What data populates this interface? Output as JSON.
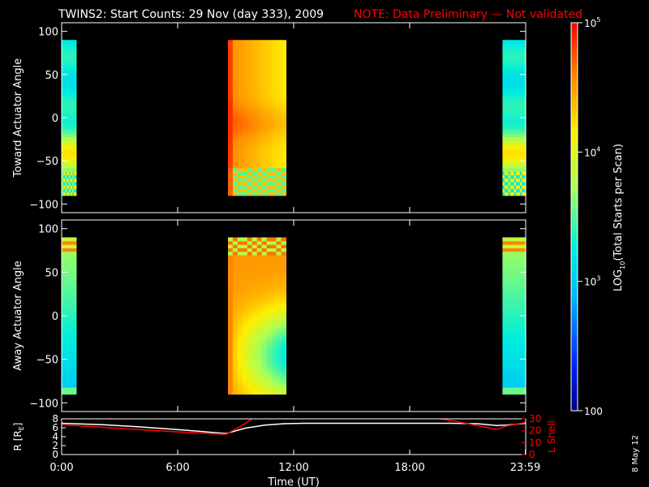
{
  "title": {
    "main": "TWINS2: Start Counts: 29 Nov (day 333), 2009",
    "note": "NOTE: Data Preliminary — Not validated",
    "note_color": "#ff0000"
  },
  "side_date": "8 May 12",
  "chart_data": [
    {
      "type": "heatmap",
      "name": "toward",
      "ylabel": "Toward Actuator Angle",
      "xlim": [
        0,
        24
      ],
      "ylim": [
        -110,
        110
      ],
      "yticks": [
        "100",
        "50",
        "0",
        "−50",
        "−100"
      ],
      "ytick_values": [
        100,
        50,
        0,
        -50,
        -100
      ],
      "blocks": [
        {
          "x0": 0.0,
          "x1": 0.75,
          "y0": -90,
          "y1": 90,
          "profile": "toward-edge"
        },
        {
          "x0": 8.6,
          "x1": 11.6,
          "y0": -90,
          "y1": 90,
          "profile": "toward-mid"
        },
        {
          "x0": 22.8,
          "x1": 24.0,
          "y0": -90,
          "y1": 90,
          "profile": "toward-edge"
        }
      ]
    },
    {
      "type": "heatmap",
      "name": "away",
      "ylabel": "Away Actuator Angle",
      "xlim": [
        0,
        24
      ],
      "ylim": [
        -110,
        110
      ],
      "yticks": [
        "100",
        "50",
        "0",
        "−50",
        "−100"
      ],
      "ytick_values": [
        100,
        50,
        0,
        -50,
        -100
      ],
      "blocks": [
        {
          "x0": 0.0,
          "x1": 0.75,
          "y0": -90,
          "y1": 90,
          "profile": "away-edge"
        },
        {
          "x0": 8.6,
          "x1": 11.6,
          "y0": -90,
          "y1": 90,
          "profile": "away-mid"
        },
        {
          "x0": 22.8,
          "x1": 24.0,
          "y0": -90,
          "y1": 90,
          "profile": "away-edge"
        }
      ]
    },
    {
      "type": "line",
      "name": "orbit",
      "ylabel_left": "R [R",
      "ylabel_left_sub": "E",
      "ylabel_left_end": "]",
      "ylabel_right": "L Shell",
      "ylim_left": [
        0,
        8
      ],
      "ylim_right": [
        0,
        30
      ],
      "yticks_left": [
        "8",
        "6",
        "4",
        "2",
        "0"
      ],
      "ytick_values_left": [
        8,
        6,
        4,
        2,
        0
      ],
      "yticks_right": [
        "30",
        "20",
        "10",
        "0"
      ],
      "ytick_values_right": [
        30,
        20,
        10,
        0
      ],
      "xticks": [
        "0:00",
        "6:00",
        "12:00",
        "18:00",
        "23:59"
      ],
      "xtick_values": [
        0,
        6,
        12,
        18,
        23.98
      ],
      "xlabel": "Time (UT)",
      "series": [
        {
          "name": "R",
          "color": "#ffffff",
          "axis": "left",
          "x": [
            0,
            2,
            4,
            6,
            8.5,
            9.5,
            10.5,
            11.5,
            12.5,
            14,
            16,
            18,
            20,
            21.5,
            22.5,
            23,
            24
          ],
          "y": [
            7.0,
            6.7,
            6.2,
            5.6,
            4.7,
            5.9,
            6.6,
            6.9,
            7.0,
            7.0,
            7.0,
            7.0,
            7.0,
            6.9,
            6.5,
            6.6,
            7.0
          ]
        },
        {
          "name": "L",
          "color": "#ff0000",
          "axis": "right",
          "x": [
            0,
            2,
            4,
            6,
            8.5,
            9.5,
            10.0,
            18.7,
            20,
            21,
            22.5,
            23,
            24
          ],
          "y": [
            25,
            23,
            21,
            19,
            17,
            26,
            32,
            32,
            29,
            26,
            21,
            24,
            27
          ]
        }
      ]
    }
  ],
  "colorbar": {
    "label_pre": "LOG",
    "label_sub": "10",
    "label_post": "(Total Starts per Scan)",
    "log_min": 2,
    "log_max": 5,
    "ticks": [
      {
        "value": 5,
        "base": "10",
        "exp": "5"
      },
      {
        "value": 4,
        "base": "10",
        "exp": "4"
      },
      {
        "value": 3,
        "base": "10",
        "exp": "3"
      },
      {
        "value": 2,
        "base": "100",
        "exp": ""
      }
    ]
  }
}
